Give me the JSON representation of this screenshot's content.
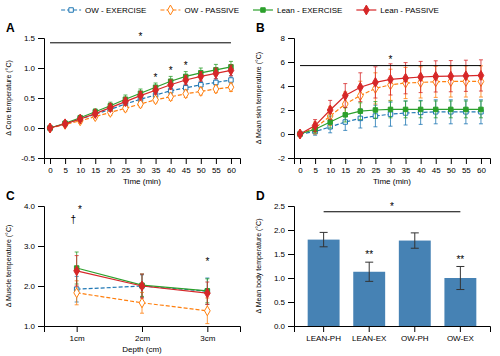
{
  "chart_data": [
    {
      "type": "line",
      "title": "A",
      "x_label": "Time (min)",
      "y_label": "Δ Core temperature (°C)",
      "x": [
        0,
        5,
        10,
        15,
        20,
        25,
        30,
        35,
        40,
        45,
        50,
        55,
        60
      ],
      "xlim": [
        -2,
        63
      ],
      "xticks": [
        0,
        5,
        10,
        15,
        20,
        25,
        30,
        35,
        40,
        45,
        50,
        55,
        60
      ],
      "ylim": [
        -0.5,
        1.5
      ],
      "yticks": [
        -0.5,
        {
          "value": 0.0,
          "label": "0.0"
        },
        0.5,
        {
          "value": 1.0,
          "label": "1.0"
        },
        1.5
      ],
      "legend": "top",
      "series": [
        {
          "name": "OW - EXERCISE",
          "marker": "square-open",
          "line_style": "dashed",
          "values": [
            0.0,
            0.07,
            0.15,
            0.23,
            0.31,
            0.4,
            0.48,
            0.55,
            0.62,
            0.67,
            0.72,
            0.76,
            0.8
          ],
          "errors": [
            0.02,
            0.03,
            0.04,
            0.04,
            0.05,
            0.05,
            0.05,
            0.05,
            0.06,
            0.06,
            0.06,
            0.06,
            0.07
          ]
        },
        {
          "name": "OW - PASSIVE",
          "marker": "diamond-open",
          "line_style": "dashed",
          "values": [
            0.0,
            0.06,
            0.12,
            0.19,
            0.26,
            0.33,
            0.4,
            0.47,
            0.52,
            0.57,
            0.61,
            0.65,
            0.68
          ],
          "errors": [
            0.02,
            0.03,
            0.04,
            0.04,
            0.05,
            0.05,
            0.05,
            0.05,
            0.06,
            0.06,
            0.06,
            0.06,
            0.07
          ]
        },
        {
          "name": "Lean - EXERCISE",
          "marker": "square",
          "line_style": "solid",
          "values": [
            0.0,
            0.08,
            0.17,
            0.27,
            0.37,
            0.48,
            0.58,
            0.68,
            0.78,
            0.86,
            0.92,
            0.97,
            1.02
          ],
          "errors": [
            0.02,
            0.03,
            0.04,
            0.05,
            0.06,
            0.07,
            0.07,
            0.07,
            0.08,
            0.08,
            0.08,
            0.09,
            0.09
          ]
        },
        {
          "name": "Lean - PASSIVE",
          "marker": "diamond",
          "line_style": "solid",
          "values": [
            0.0,
            0.07,
            0.15,
            0.24,
            0.34,
            0.44,
            0.54,
            0.63,
            0.72,
            0.8,
            0.86,
            0.91,
            0.96
          ],
          "errors": [
            0.02,
            0.03,
            0.04,
            0.05,
            0.06,
            0.06,
            0.07,
            0.07,
            0.08,
            0.08,
            0.08,
            0.09,
            0.09
          ]
        }
      ],
      "annotations": [
        {
          "text": "*",
          "x": 30,
          "y": 1.47
        },
        {
          "text": "*",
          "x": 35,
          "y": 0.79
        },
        {
          "text": "*",
          "x": 40,
          "y": 0.9
        },
        {
          "text": "*",
          "x": 45,
          "y": 0.98
        }
      ],
      "lines": [
        {
          "x": [
            0,
            60
          ],
          "y": 1.42
        }
      ]
    },
    {
      "type": "line",
      "title": "B",
      "x_label": "Time (min)",
      "y_label": "Δ Mean skin temperature (°C)",
      "x": [
        0,
        5,
        10,
        15,
        20,
        25,
        30,
        35,
        40,
        45,
        50,
        55,
        60
      ],
      "xlim": [
        -2,
        63
      ],
      "xticks": [
        0,
        5,
        10,
        15,
        20,
        25,
        30,
        35,
        40,
        45,
        50,
        55,
        60
      ],
      "ylim": [
        -2,
        8
      ],
      "yticks": [
        -2,
        0,
        2,
        4,
        6,
        8
      ],
      "series": [
        {
          "marker": "square-open",
          "line_style": "dashed",
          "values": [
            0.0,
            0.2,
            0.6,
            1.0,
            1.3,
            1.5,
            1.65,
            1.75,
            1.8,
            1.85,
            1.85,
            1.85,
            1.85
          ],
          "errors": [
            0.1,
            0.3,
            0.5,
            0.7,
            0.8,
            0.9,
            1.0,
            1.0,
            1.0,
            1.0,
            1.0,
            1.0,
            1.0
          ]
        },
        {
          "marker": "diamond-open",
          "line_style": "dashed",
          "values": [
            0.0,
            0.5,
            1.5,
            2.5,
            3.2,
            3.8,
            4.1,
            4.25,
            4.3,
            4.35,
            4.38,
            4.38,
            4.38
          ],
          "errors": [
            0.2,
            0.5,
            0.8,
            1.0,
            1.2,
            1.3,
            1.3,
            1.3,
            1.3,
            1.3,
            1.3,
            1.3,
            1.3
          ]
        },
        {
          "marker": "square",
          "line_style": "solid",
          "values": [
            0.0,
            0.4,
            1.0,
            1.6,
            1.9,
            2.0,
            2.05,
            2.05,
            2.05,
            2.05,
            2.05,
            2.05,
            2.05
          ],
          "errors": [
            0.1,
            0.3,
            0.5,
            0.6,
            0.7,
            0.7,
            0.7,
            0.7,
            0.7,
            0.7,
            0.7,
            0.7,
            0.7
          ]
        },
        {
          "marker": "diamond",
          "line_style": "solid",
          "values": [
            0.0,
            0.7,
            2.0,
            3.2,
            3.9,
            4.3,
            4.55,
            4.65,
            4.75,
            4.8,
            4.82,
            4.85,
            4.88
          ],
          "errors": [
            0.2,
            0.5,
            0.8,
            1.0,
            1.2,
            1.3,
            1.3,
            1.3,
            1.3,
            1.3,
            1.3,
            1.3,
            1.3
          ]
        }
      ],
      "annotations": [
        {
          "text": "*",
          "x": 30,
          "y": 5.88
        }
      ],
      "lines": [
        {
          "x": [
            0,
            60
          ],
          "y": 5.7
        }
      ]
    },
    {
      "type": "line",
      "title": "C",
      "x_label": "Depth (cm)",
      "y_label": "Δ Muscle temperature (°C)",
      "x": [
        1,
        2,
        3
      ],
      "xlim": [
        0.5,
        3.5
      ],
      "xticks": [
        {
          "value": 1,
          "label": "1cm"
        },
        {
          "value": 2,
          "label": "2cm"
        },
        {
          "value": 3,
          "label": "3cm"
        }
      ],
      "ylim": [
        1.0,
        4.0
      ],
      "yticks": [
        {
          "value": 1.0,
          "label": "1.0"
        },
        {
          "value": 2.0,
          "label": "2.0"
        },
        {
          "value": 3.0,
          "label": "3.0"
        },
        {
          "value": 4.0,
          "label": "4.0"
        }
      ],
      "series": [
        {
          "marker": "square-open",
          "line_style": "dashed",
          "values": [
            1.92,
            2.0,
            1.87
          ],
          "errors": [
            0.32,
            0.28,
            0.33
          ]
        },
        {
          "marker": "diamond-open",
          "line_style": "dashed",
          "values": [
            1.83,
            1.58,
            1.38
          ],
          "errors": [
            0.3,
            0.26,
            0.32
          ]
        },
        {
          "marker": "square",
          "line_style": "solid",
          "values": [
            2.45,
            2.02,
            1.88
          ],
          "errors": [
            0.4,
            0.28,
            0.3
          ]
        },
        {
          "marker": "diamond",
          "line_style": "solid",
          "values": [
            2.38,
            2.0,
            1.82
          ],
          "errors": [
            0.38,
            0.3,
            0.28
          ]
        }
      ],
      "annotations": [
        {
          "text": "*",
          "x": 1.05,
          "y": 3.82
        },
        {
          "text": "†",
          "x": 0.95,
          "y": 3.58
        },
        {
          "text": "*",
          "x": 3.0,
          "y": 2.52
        }
      ]
    },
    {
      "type": "bar",
      "title": "D",
      "y_label": "Δ Mean body temperature (°C)",
      "categories": [
        "LEAN-PH",
        "LEAN-EX",
        "OW-PH",
        "OW-EX"
      ],
      "values": [
        1.8,
        1.13,
        1.78,
        1.0
      ],
      "errors": [
        0.15,
        0.2,
        0.16,
        0.24
      ],
      "ylim": [
        0.0,
        2.5
      ],
      "yticks": [
        {
          "value": 0.0,
          "label": "0.0"
        },
        0.5,
        {
          "value": 1.0,
          "label": "1.0"
        },
        1.5,
        {
          "value": 2.0,
          "label": "2.0"
        },
        2.5
      ],
      "annotations": [
        {
          "text": "**",
          "x": "LEAN-EX",
          "y": 1.41
        },
        {
          "text": "**",
          "x": "OW-EX",
          "y": 1.32
        },
        {
          "text": "*",
          "x": [
            "LEAN-EX",
            "OW-PH"
          ],
          "y": 2.42
        }
      ],
      "lines": [
        {
          "x": [
            "LEAN-PH",
            "OW-EX"
          ],
          "y": 2.38
        }
      ]
    }
  ]
}
